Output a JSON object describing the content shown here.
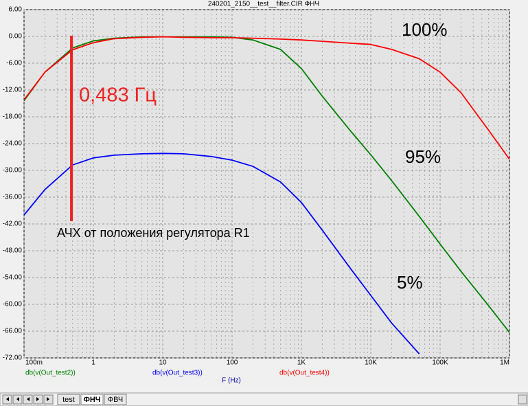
{
  "chart_data": {
    "type": "line",
    "title": "240201_2150__test__filter.CIR ФНЧ",
    "xlabel": "F (Hz)",
    "xscale": "log",
    "grid": true,
    "x": [
      0.1,
      0.2,
      0.5,
      1,
      2,
      5,
      10,
      20,
      50,
      100,
      200,
      500,
      1000,
      2000,
      5000,
      10000,
      20000,
      50000,
      100000,
      200000,
      500000,
      1000000
    ],
    "series": [
      {
        "name": "db(v(Out_test2))",
        "color": "#008000",
        "values": [
          -14.4,
          -8,
          -2.6,
          -1,
          -0.4,
          -0.1,
          -0.1,
          -0.1,
          -0.1,
          -0.2,
          -0.8,
          -2.9,
          -7.2,
          -13.4,
          -21,
          -26.5,
          -32.3,
          -40.3,
          -46.5,
          -52.6,
          -60.3,
          -66.3
        ]
      },
      {
        "name": "db(v(Out_test3))",
        "color": "#0000ff",
        "values": [
          -40,
          -34.3,
          -28.8,
          -27.2,
          -26.6,
          -26.3,
          -26.2,
          -26.3,
          -26.9,
          -27.7,
          -29.1,
          -32.6,
          -37.2,
          -43.4,
          -51.8,
          -58,
          -64.2,
          -71.1,
          null,
          null,
          null,
          null
        ]
      },
      {
        "name": "db(v(Out_test4))",
        "color": "#ff0000",
        "values": [
          -14.2,
          -8,
          -3,
          -1.4,
          -0.5,
          -0.2,
          -0.1,
          -0.2,
          -0.3,
          -0.3,
          -0.4,
          -0.6,
          -0.8,
          -1.1,
          -1.5,
          -1.8,
          -2.9,
          -5,
          -8,
          -12.6,
          -21,
          -27.5
        ]
      }
    ],
    "xlim": [
      0.1,
      1000000
    ],
    "xticks": [
      {
        "value": 0.1,
        "label": "100m"
      },
      1,
      10,
      100,
      {
        "value": 1000,
        "label": "1K"
      },
      {
        "value": 10000,
        "label": "10K"
      },
      {
        "value": 100000,
        "label": "100K"
      },
      {
        "value": 1000000,
        "label": "1M"
      }
    ],
    "ylim": [
      -72,
      6
    ],
    "yticks": [
      {
        "value": 6,
        "label": "6.00"
      },
      {
        "value": 0,
        "label": "0.00"
      },
      {
        "value": -6,
        "label": "-6.00"
      },
      {
        "value": -12,
        "label": "-12.00"
      },
      {
        "value": -18,
        "label": "-18.00"
      },
      {
        "value": -24,
        "label": "-24.00"
      },
      {
        "value": -30,
        "label": "-30.00"
      },
      {
        "value": -36,
        "label": "-36.00"
      },
      {
        "value": -42,
        "label": "-42.00"
      },
      {
        "value": -48,
        "label": "-48.00"
      },
      {
        "value": -54,
        "label": "-54.00"
      },
      {
        "value": -60,
        "label": "-60.00"
      },
      {
        "value": -66,
        "label": "-66.00"
      },
      {
        "value": -72,
        "label": "-72.00"
      }
    ],
    "marker": {
      "value": 0.483,
      "label": "0,483 Гц",
      "color": "#ee2222"
    },
    "annotations": [
      "100%",
      "95%",
      "5%",
      "АЧХ от положения регулятора R1"
    ]
  },
  "tabs": [
    "test",
    "ФНЧ",
    "ФВЧ"
  ]
}
